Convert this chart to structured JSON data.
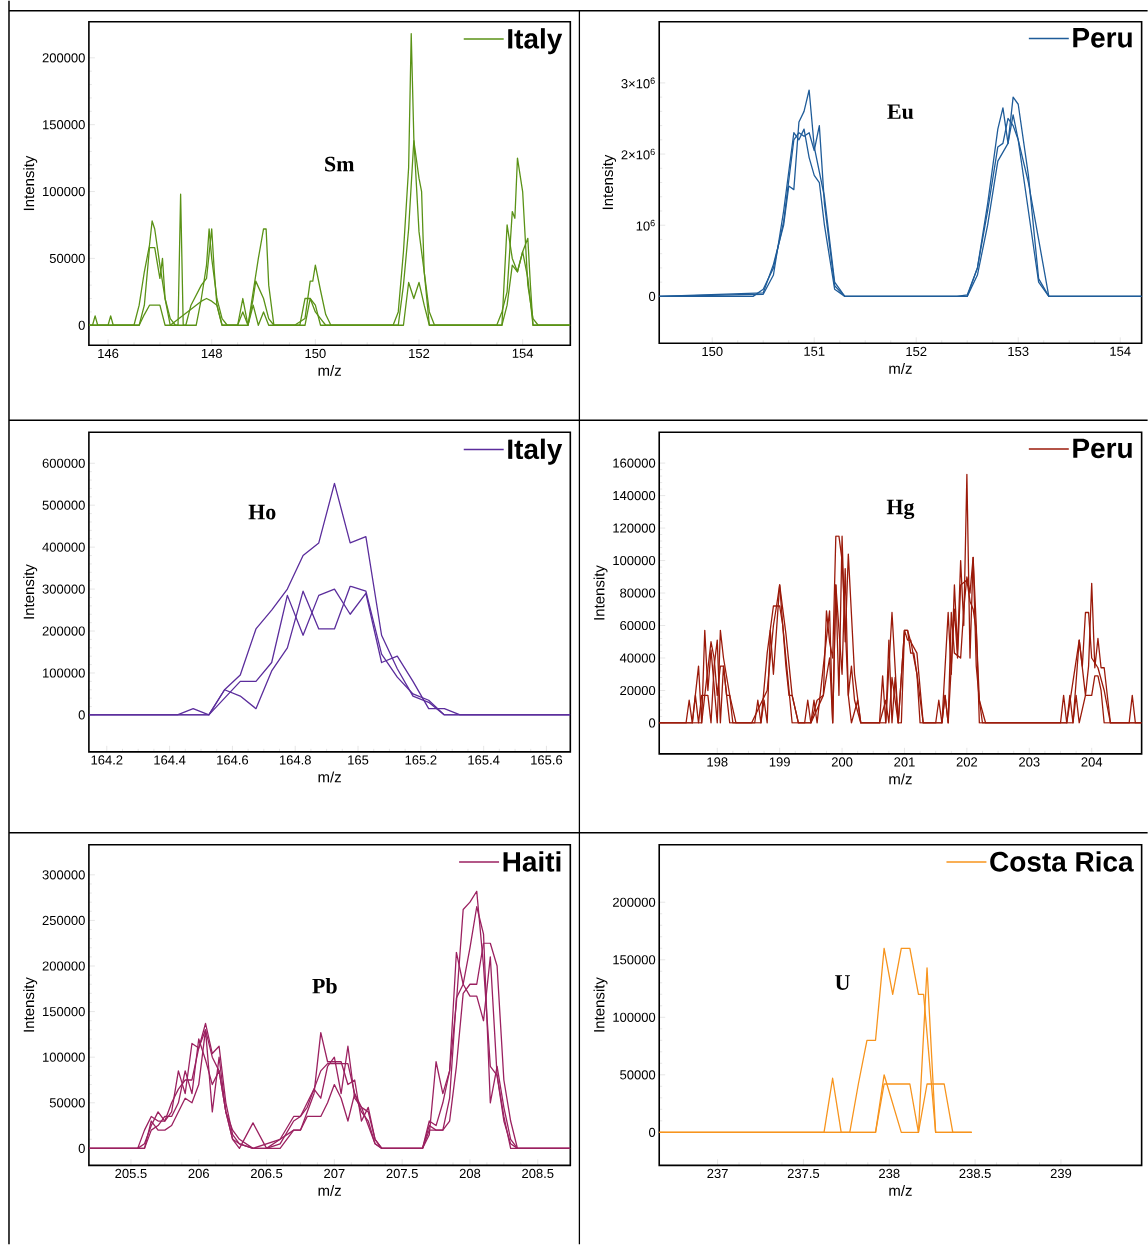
{
  "chart_data": [
    {
      "type": "line",
      "xlabel": "m/z",
      "ylabel": "Intensity",
      "annotations": [
        "Sm"
      ],
      "legend": "top right",
      "xlim": [
        145.63,
        154.92
      ],
      "ylim": [
        -15000,
        227000
      ],
      "xticks": [
        146,
        148,
        150,
        152,
        154
      ],
      "yticks": [
        0,
        50000,
        100000,
        150000,
        200000
      ],
      "series": [
        {
          "name": "Italy",
          "color": "#5a9216",
          "x": [
            145.63,
            145.7,
            145.75,
            145.8,
            146.5,
            146.6,
            146.7,
            146.8,
            146.85,
            146.9,
            147.0,
            147.1,
            147.2,
            147.3,
            147.7,
            147.8,
            147.9,
            147.95,
            148.0,
            148.1,
            148.2,
            148.3,
            148.7,
            148.8,
            148.85,
            148.9,
            148.95,
            149.0,
            149.1,
            149.2,
            149.6,
            149.8,
            149.9,
            149.95,
            150.0,
            150.1,
            150.2,
            150.3,
            151.5,
            151.6,
            151.7,
            151.8,
            151.85,
            151.9,
            152.0,
            152.1,
            152.2,
            152.3,
            153.5,
            153.6,
            153.7,
            153.8,
            153.85,
            153.9,
            154.0,
            154.1,
            154.2,
            154.3,
            154.92
          ],
          "values": [
            0,
            0,
            7000,
            0,
            0,
            15000,
            40000,
            60000,
            78000,
            72000,
            45000,
            20000,
            5000,
            0,
            0,
            20000,
            45000,
            72000,
            50000,
            20000,
            5000,
            0,
            0,
            20000,
            33000,
            null,
            null,
            20000,
            5000,
            0,
            0,
            5000,
            33000,
            33000,
            45000,
            26000,
            8000,
            0,
            0,
            10000,
            55000,
            118000,
            218000,
            140000,
            70000,
            40000,
            10000,
            0,
            0,
            10000,
            25000,
            85000,
            80000,
            125000,
            100000,
            30000,
            5000,
            0,
            0
          ]
        },
        {
          "color": "#5a9216",
          "x": [
            145.63,
            146.0,
            146.05,
            146.1,
            146.6,
            146.7,
            146.8,
            146.9,
            147.0,
            147.05,
            147.1,
            147.2,
            147.35,
            147.4,
            147.45,
            147.5,
            147.6,
            147.8,
            147.9,
            148.0,
            148.05,
            148.1,
            148.2,
            148.5,
            148.6,
            148.7,
            148.9,
            149.0,
            149.05,
            149.1,
            149.2,
            149.7,
            149.8,
            149.9,
            150.0,
            150.1,
            150.2,
            151.6,
            151.7,
            151.8,
            151.9,
            152.0,
            152.05,
            152.1,
            152.2,
            153.6,
            153.7,
            153.8,
            153.9,
            154.0,
            154.1,
            154.15,
            154.2,
            154.92
          ],
          "values": [
            0,
            0,
            7000,
            0,
            0,
            15000,
            58000,
            58000,
            35000,
            50000,
            20000,
            0,
            0,
            98000,
            0,
            0,
            15000,
            30000,
            35000,
            72000,
            40000,
            15000,
            0,
            0,
            20000,
            0,
            50000,
            72000,
            72000,
            30000,
            0,
            0,
            20000,
            20000,
            15000,
            0,
            0,
            0,
            30000,
            72000,
            138000,
            110000,
            100000,
            40000,
            0,
            0,
            75000,
            50000,
            40000,
            55000,
            65000,
            30000,
            0,
            0
          ]
        },
        {
          "color": "#5a9216",
          "x": [
            145.63,
            146.6,
            146.7,
            146.8,
            146.9,
            147.0,
            147.1,
            147.2,
            147.8,
            147.9,
            148.0,
            148.1,
            148.2,
            148.5,
            148.6,
            148.7,
            148.8,
            148.9,
            149.0,
            149.1,
            149.2,
            149.8,
            149.9,
            150.0,
            150.1,
            150.2,
            151.7,
            151.8,
            151.9,
            152.0,
            152.1,
            152.2,
            153.6,
            153.7,
            153.8,
            153.9,
            154.0,
            154.1,
            154.2,
            154.92
          ],
          "values": [
            0,
            0,
            8000,
            15000,
            15000,
            15000,
            0,
            0,
            18000,
            20000,
            18000,
            15000,
            0,
            0,
            10000,
            0,
            15000,
            0,
            10000,
            0,
            0,
            0,
            20000,
            10000,
            5000,
            0,
            0,
            32000,
            20000,
            32000,
            15000,
            0,
            0,
            15000,
            45000,
            40000,
            55000,
            35000,
            0,
            0
          ]
        }
      ]
    },
    {
      "type": "line",
      "xlabel": "m/z",
      "ylabel": "Intensity",
      "annotations": [
        "Eu"
      ],
      "legend": "top right",
      "xlim": [
        149.48,
        154.21
      ],
      "ylim": [
        -660000,
        3860000
      ],
      "xticks": [
        150,
        151,
        152,
        153,
        154
      ],
      "yticks": [
        0,
        {
          "value": 1000000,
          "label": "10$^{6}$"
        },
        {
          "value": 2000000,
          "label": "2×10$^{6}$"
        },
        {
          "value": 3000000,
          "label": "3×10$^{6}$"
        }
      ],
      "series": [
        {
          "name": "Peru",
          "color": "#1f5c99",
          "x": [
            149.48,
            150.4,
            150.5,
            150.6,
            150.7,
            150.8,
            150.85,
            150.9,
            150.95,
            151.0,
            151.05,
            151.1,
            151.2,
            151.3,
            152.4,
            152.5,
            152.6,
            152.7,
            152.8,
            152.85,
            152.9,
            152.95,
            153.0,
            153.1,
            153.2,
            153.3,
            154.21
          ],
          "values": [
            0,
            0,
            100000,
            400000,
            1050000,
            2200000,
            2300000,
            2250000,
            2300000,
            2050000,
            2400000,
            1300000,
            150000,
            0,
            0,
            20000,
            400000,
            1200000,
            2100000,
            2150000,
            2500000,
            2400000,
            2200000,
            1600000,
            800000,
            0,
            0
          ]
        },
        {
          "color": "#1f5c99",
          "x": [
            149.48,
            150.5,
            150.6,
            150.7,
            150.75,
            150.8,
            150.85,
            150.9,
            150.95,
            151.0,
            151.1,
            151.2,
            151.3,
            152.5,
            152.6,
            152.7,
            152.8,
            152.85,
            152.9,
            152.95,
            153.0,
            153.1,
            153.2,
            153.3,
            154.21
          ],
          "values": [
            0,
            50000,
            450000,
            1000000,
            1550000,
            1500000,
            2450000,
            2600000,
            2900000,
            2100000,
            1400000,
            200000,
            0,
            0,
            400000,
            1300000,
            2350000,
            2650000,
            2150000,
            2800000,
            2700000,
            1700000,
            250000,
            0,
            0
          ]
        },
        {
          "color": "#1f5c99",
          "x": [
            149.48,
            150.5,
            150.6,
            150.7,
            150.8,
            150.85,
            150.9,
            150.95,
            151.0,
            151.05,
            151.1,
            151.2,
            151.3,
            152.5,
            152.6,
            152.7,
            152.8,
            152.9,
            152.95,
            153.0,
            153.1,
            153.2,
            153.3,
            154.21
          ],
          "values": [
            0,
            30000,
            300000,
            1200000,
            2300000,
            2200000,
            2350000,
            1950000,
            1700000,
            1600000,
            1000000,
            100000,
            0,
            0,
            300000,
            1000000,
            1900000,
            2150000,
            2550000,
            2200000,
            1200000,
            200000,
            0,
            0
          ]
        }
      ]
    },
    {
      "type": "line",
      "xlabel": "m/z",
      "ylabel": "Intensity",
      "annotations": [
        "Ho"
      ],
      "legend": "top right",
      "xlim": [
        164.143,
        165.676
      ],
      "ylim": [
        -88000,
        674000
      ],
      "xticks": [
        164.2,
        164.4,
        164.6,
        164.8,
        165,
        165.2,
        165.4,
        165.6
      ],
      "yticks": [
        0,
        100000,
        200000,
        300000,
        400000,
        500000,
        600000
      ],
      "series": [
        {
          "name": "Italy",
          "color": "#5b2d9c",
          "x": [
            164.143,
            164.425,
            164.475,
            164.525,
            164.575,
            164.625,
            164.675,
            164.725,
            164.775,
            164.825,
            164.875,
            164.925,
            164.975,
            165.025,
            165.075,
            165.125,
            165.175,
            165.225,
            165.275,
            165.325,
            165.676
          ],
          "values": [
            0,
            0,
            0,
            0,
            60000,
            95000,
            205000,
            250000,
            300000,
            380000,
            410000,
            552000,
            410000,
            425000,
            190000,
            110000,
            45000,
            30000,
            0,
            0,
            0
          ]
        },
        {
          "color": "#5b2d9c",
          "x": [
            164.143,
            164.425,
            164.475,
            164.525,
            164.575,
            164.625,
            164.675,
            164.725,
            164.775,
            164.825,
            164.875,
            164.925,
            164.975,
            165.025,
            165.075,
            165.125,
            165.175,
            165.225,
            165.275,
            165.325,
            165.676
          ],
          "values": [
            0,
            0,
            15000,
            0,
            40000,
            80000,
            80000,
            125000,
            285000,
            190000,
            285000,
            300000,
            240000,
            290000,
            125000,
            140000,
            80000,
            15000,
            15000,
            0,
            0
          ]
        },
        {
          "color": "#5b2d9c",
          "x": [
            164.143,
            164.425,
            164.475,
            164.525,
            164.575,
            164.625,
            164.675,
            164.725,
            164.775,
            164.825,
            164.875,
            164.925,
            164.975,
            165.025,
            165.075,
            165.125,
            165.175,
            165.225,
            165.275,
            165.325,
            165.676
          ],
          "values": [
            0,
            0,
            0,
            0,
            60000,
            45000,
            15000,
            105000,
            160000,
            295000,
            205000,
            205000,
            307000,
            295000,
            145000,
            90000,
            50000,
            35000,
            0,
            0,
            0
          ]
        }
      ]
    },
    {
      "type": "line",
      "xlabel": "m/z",
      "ylabel": "Intensity",
      "annotations": [
        "Hg"
      ],
      "legend": "top right",
      "xlim": [
        197.07,
        204.8
      ],
      "ylim": [
        -19000,
        179000
      ],
      "xticks": [
        198,
        199,
        200,
        201,
        202,
        203,
        204
      ],
      "yticks": [
        0,
        20000,
        40000,
        60000,
        80000,
        100000,
        120000,
        140000,
        160000
      ],
      "series": [
        {
          "name": "Peru",
          "color": "#9b1a0a",
          "x": [
            197.07,
            197.5,
            197.55,
            197.6,
            197.7,
            197.75,
            197.8,
            197.85,
            197.9,
            198.0,
            198.05,
            198.1,
            198.2,
            198.3,
            198.7,
            198.75,
            198.8,
            198.85,
            198.9,
            199.0,
            199.05,
            199.1,
            199.2,
            199.3,
            199.5,
            199.55,
            199.6,
            199.7,
            199.8,
            199.85,
            199.9,
            199.95,
            200.0,
            200.05,
            200.1,
            200.2,
            200.3,
            200.7,
            200.75,
            200.8,
            200.85,
            200.9,
            201.0,
            201.05,
            201.1,
            201.2,
            201.3,
            201.6,
            201.7,
            201.75,
            201.8,
            201.85,
            201.9,
            201.95,
            202.0,
            202.05,
            202.1,
            202.15,
            202.2,
            202.3,
            203.5,
            203.55,
            203.6,
            203.8,
            203.85,
            203.9,
            203.95,
            204.0,
            204.1,
            204.2,
            204.3,
            204.8
          ],
          "values": [
            0,
            0,
            14000,
            0,
            35000,
            0,
            57000,
            20000,
            45000,
            0,
            57000,
            40000,
            17000,
            0,
            0,
            14000,
            0,
            57000,
            30000,
            85000,
            70000,
            55000,
            17000,
            0,
            0,
            14000,
            0,
            35000,
            69000,
            0,
            85000,
            17000,
            115000,
            50000,
            104000,
            30000,
            0,
            0,
            51000,
            0,
            28000,
            0,
            57000,
            57000,
            50000,
            43000,
            0,
            0,
            68000,
            30000,
            85000,
            45000,
            100000,
            60000,
            153000,
            40000,
            102000,
            60000,
            0,
            0,
            0,
            17000,
            0,
            51000,
            35000,
            68000,
            68000,
            40000,
            34000,
            20000,
            0,
            0
          ]
        },
        {
          "color": "#9b1a0a",
          "x": [
            197.07,
            197.6,
            197.65,
            197.7,
            197.75,
            197.8,
            197.9,
            197.95,
            198.0,
            198.05,
            198.1,
            198.15,
            198.2,
            198.25,
            198.3,
            198.6,
            198.65,
            198.7,
            198.8,
            198.9,
            198.95,
            199.0,
            199.05,
            199.1,
            199.2,
            199.3,
            199.4,
            199.45,
            199.5,
            199.7,
            199.75,
            199.8,
            199.85,
            199.9,
            199.95,
            200.0,
            200.05,
            200.1,
            200.15,
            200.25,
            200.3,
            200.6,
            200.7,
            200.75,
            200.8,
            200.85,
            200.9,
            201.0,
            201.05,
            201.1,
            201.15,
            201.2,
            201.25,
            201.6,
            201.65,
            201.7,
            201.8,
            201.85,
            201.9,
            202.0,
            202.05,
            202.1,
            202.15,
            202.2,
            202.25,
            203.7,
            203.75,
            203.8,
            203.9,
            203.95,
            204.0,
            204.05,
            204.1,
            204.15,
            204.2,
            204.25,
            204.6,
            204.65,
            204.7,
            204.8
          ],
          "values": [
            0,
            0,
            17000,
            0,
            17000,
            17000,
            50000,
            40000,
            17000,
            35000,
            35000,
            17000,
            17000,
            0,
            0,
            0,
            14000,
            0,
            43000,
            72000,
            72000,
            72000,
            60000,
            40000,
            0,
            0,
            0,
            14000,
            0,
            17000,
            69000,
            50000,
            40000,
            115000,
            115000,
            100000,
            60000,
            17000,
            0,
            14000,
            0,
            0,
            14000,
            0,
            28000,
            14000,
            0,
            57000,
            57000,
            43000,
            43000,
            30000,
            0,
            0,
            17000,
            0,
            70000,
            40000,
            85000,
            88000,
            75000,
            70000,
            57000,
            14000,
            0,
            0,
            17000,
            0,
            17000,
            17000,
            17000,
            29000,
            29000,
            20000,
            0,
            0,
            0,
            17000,
            0,
            0
          ]
        },
        {
          "color": "#9b1a0a",
          "x": [
            197.07,
            197.75,
            197.8,
            197.85,
            197.9,
            197.95,
            198.0,
            198.05,
            198.1,
            198.15,
            198.2,
            198.5,
            198.55,
            198.8,
            198.85,
            198.9,
            198.95,
            199.0,
            199.1,
            199.15,
            199.2,
            199.3,
            199.5,
            199.6,
            199.7,
            199.8,
            199.85,
            199.9,
            200.0,
            200.05,
            200.1,
            200.15,
            200.2,
            200.3,
            200.5,
            200.6,
            200.65,
            200.7,
            200.8,
            200.9,
            200.95,
            201.0,
            201.05,
            201.1,
            201.15,
            201.2,
            201.3,
            201.5,
            201.55,
            201.6,
            201.65,
            201.7,
            201.75,
            201.8,
            201.9,
            201.95,
            202.0,
            202.05,
            202.1,
            202.15,
            202.2,
            202.3,
            203.6,
            203.65,
            203.7,
            203.8,
            203.9,
            203.95,
            204.0,
            204.05,
            204.1,
            204.15,
            204.2,
            204.3,
            204.8
          ],
          "values": [
            0,
            0,
            17000,
            17000,
            0,
            35000,
            51000,
            0,
            35000,
            17000,
            0,
            0,
            0,
            20000,
            40000,
            60000,
            72000,
            85000,
            35000,
            17000,
            17000,
            0,
            0,
            14000,
            17000,
            40000,
            0,
            85000,
            30000,
            95000,
            17000,
            35000,
            14000,
            0,
            0,
            0,
            29000,
            0,
            68000,
            0,
            0,
            57000,
            51000,
            51000,
            40000,
            30000,
            0,
            0,
            14000,
            0,
            17000,
            0,
            68000,
            43000,
            40000,
            70000,
            90000,
            80000,
            102000,
            35000,
            14000,
            0,
            0,
            17000,
            0,
            51000,
            17000,
            35000,
            86000,
            34000,
            52000,
            34000,
            34000,
            0,
            0
          ]
        }
      ]
    },
    {
      "type": "line",
      "xlabel": "m/z",
      "ylabel": "Intensity",
      "annotations": [
        "Pb"
      ],
      "legend": "top right",
      "xlim": [
        205.19,
        208.74
      ],
      "ylim": [
        -18600,
        333000
      ],
      "xticks": [
        205.5,
        206,
        206.5,
        207,
        207.5,
        208,
        208.5
      ],
      "yticks": [
        0,
        50000,
        100000,
        150000,
        200000,
        250000,
        300000
      ],
      "series": [
        {
          "name": "Haiti",
          "color": "#9b2160",
          "x": [
            205.19,
            205.55,
            205.6,
            205.65,
            205.7,
            205.75,
            205.8,
            205.85,
            205.9,
            205.95,
            206.0,
            206.05,
            206.1,
            206.15,
            206.2,
            206.25,
            206.3,
            206.4,
            206.5,
            206.6,
            206.7,
            206.75,
            206.8,
            206.85,
            206.9,
            206.95,
            207.0,
            207.05,
            207.1,
            207.15,
            207.2,
            207.25,
            207.3,
            207.35,
            207.65,
            207.7,
            207.75,
            207.8,
            207.85,
            207.9,
            207.95,
            208.0,
            208.05,
            208.1,
            208.15,
            208.2,
            208.25,
            208.3,
            208.35,
            208.74
          ],
          "values": [
            0,
            0,
            20000,
            35000,
            30000,
            30000,
            50000,
            65000,
            75000,
            75000,
            110000,
            137000,
            104000,
            112000,
            50000,
            15000,
            5000,
            0,
            0,
            5000,
            30000,
            35000,
            50000,
            65000,
            85000,
            93000,
            93000,
            93000,
            93000,
            60000,
            45000,
            25000,
            5000,
            0,
            0,
            30000,
            25000,
            50000,
            85000,
            160000,
            262000,
            270000,
            282000,
            200000,
            90000,
            80000,
            30000,
            5000,
            0,
            0
          ]
        },
        {
          "color": "#9b2160",
          "x": [
            205.19,
            205.55,
            205.6,
            205.65,
            205.7,
            205.75,
            205.8,
            205.85,
            205.9,
            205.95,
            206.0,
            206.05,
            206.1,
            206.15,
            206.2,
            206.25,
            206.3,
            206.4,
            206.5,
            206.6,
            206.7,
            206.75,
            206.8,
            206.85,
            206.9,
            206.95,
            207.0,
            207.05,
            207.1,
            207.15,
            207.2,
            207.25,
            207.3,
            207.35,
            207.65,
            207.7,
            207.75,
            207.8,
            207.85,
            207.9,
            207.95,
            208.0,
            208.05,
            208.1,
            208.15,
            208.2,
            208.25,
            208.3,
            208.35,
            208.74
          ],
          "values": [
            0,
            0,
            0,
            20000,
            25000,
            35000,
            35000,
            50000,
            85000,
            60000,
            120000,
            97000,
            70000,
            85000,
            40000,
            10000,
            0,
            28000,
            0,
            10000,
            20000,
            20000,
            40000,
            60000,
            127000,
            95000,
            95000,
            95000,
            70000,
            75000,
            30000,
            45000,
            10000,
            0,
            0,
            15000,
            95000,
            60000,
            85000,
            215000,
            180000,
            167000,
            167000,
            140000,
            210000,
            80000,
            35000,
            0,
            0,
            0
          ]
        },
        {
          "color": "#9b2160",
          "x": [
            205.19,
            205.55,
            205.6,
            205.65,
            205.7,
            205.75,
            205.8,
            205.85,
            205.9,
            205.95,
            206.0,
            206.05,
            206.1,
            206.15,
            206.2,
            206.25,
            206.3,
            206.4,
            206.5,
            206.6,
            206.7,
            206.75,
            206.8,
            206.85,
            206.9,
            206.95,
            207.0,
            207.05,
            207.1,
            207.15,
            207.2,
            207.25,
            207.3,
            207.35,
            207.65,
            207.7,
            207.75,
            207.8,
            207.85,
            207.9,
            207.95,
            208.0,
            208.05,
            208.1,
            208.15,
            208.2,
            208.25,
            208.3,
            208.35,
            208.74
          ],
          "values": [
            0,
            0,
            5000,
            25000,
            40000,
            30000,
            40000,
            85000,
            60000,
            115000,
            110000,
            130000,
            100000,
            85000,
            40000,
            10000,
            5000,
            0,
            5000,
            10000,
            35000,
            35000,
            45000,
            65000,
            55000,
            90000,
            100000,
            60000,
            112000,
            55000,
            45000,
            40000,
            10000,
            0,
            0,
            25000,
            20000,
            20000,
            55000,
            165000,
            180000,
            220000,
            265000,
            235000,
            50000,
            90000,
            45000,
            10000,
            0,
            0
          ]
        },
        {
          "color": "#9b2160",
          "x": [
            205.19,
            205.55,
            205.6,
            205.65,
            205.7,
            205.75,
            205.8,
            205.85,
            205.9,
            205.95,
            206.0,
            206.05,
            206.1,
            206.15,
            206.2,
            206.25,
            206.3,
            206.4,
            206.5,
            206.6,
            206.7,
            206.75,
            206.8,
            206.85,
            206.9,
            206.95,
            207.0,
            207.05,
            207.1,
            207.15,
            207.2,
            207.25,
            207.3,
            207.35,
            207.65,
            207.7,
            207.75,
            207.8,
            207.85,
            207.9,
            207.95,
            208.0,
            208.05,
            208.1,
            208.15,
            208.2,
            208.25,
            208.3,
            208.35,
            208.74
          ],
          "values": [
            0,
            0,
            0,
            30000,
            20000,
            20000,
            25000,
            40000,
            55000,
            50000,
            70000,
            130000,
            40000,
            100000,
            40000,
            20000,
            10000,
            0,
            0,
            0,
            20000,
            20000,
            35000,
            35000,
            35000,
            50000,
            70000,
            55000,
            30000,
            60000,
            40000,
            30000,
            5000,
            0,
            0,
            20000,
            20000,
            20000,
            30000,
            90000,
            170000,
            180000,
            180000,
            225000,
            225000,
            200000,
            75000,
            30000,
            0,
            0
          ]
        }
      ]
    },
    {
      "type": "line",
      "xlabel": "m/z",
      "ylabel": "Intensity",
      "annotations": [
        "U"
      ],
      "legend": "top right",
      "xlim": [
        236.66,
        239.47
      ],
      "ylim": [
        -28700,
        250000
      ],
      "xticks": [
        237,
        237.5,
        238,
        238.5,
        239
      ],
      "yticks": [
        0,
        50000,
        100000,
        150000,
        200000
      ],
      "series": [
        {
          "name": "Costa Rica",
          "color": "#f7941d",
          "x": [
            236.66,
            237.62,
            237.67,
            237.72,
            237.92,
            237.97,
            238.02,
            238.07,
            238.12,
            238.17,
            238.22,
            238.27,
            238.32,
            238.37,
            238.48
          ],
          "values": [
            0,
            0,
            47000,
            0,
            0,
            42000,
            42000,
            42000,
            42000,
            0,
            42000,
            42000,
            42000,
            0,
            0
          ]
        },
        {
          "color": "#f7941d",
          "x": [
            236.66,
            237.77,
            237.82,
            237.87,
            237.92,
            237.97,
            238.02,
            238.07,
            238.12,
            238.17,
            238.2,
            238.27,
            238.48
          ],
          "values": [
            0,
            0,
            42000,
            80000,
            80000,
            160000,
            120000,
            160000,
            160000,
            120000,
            120000,
            0,
            0
          ]
        },
        {
          "color": "#f7941d",
          "x": [
            236.66,
            237.82,
            237.87,
            237.92,
            237.97,
            237.99,
            238.05,
            238.07,
            238.12,
            238.17,
            238.22,
            238.27,
            238.48
          ],
          "values": [
            0,
            0,
            0,
            0,
            50000,
            null,
            null,
            0,
            0,
            0,
            143000,
            0,
            0
          ]
        }
      ]
    }
  ]
}
